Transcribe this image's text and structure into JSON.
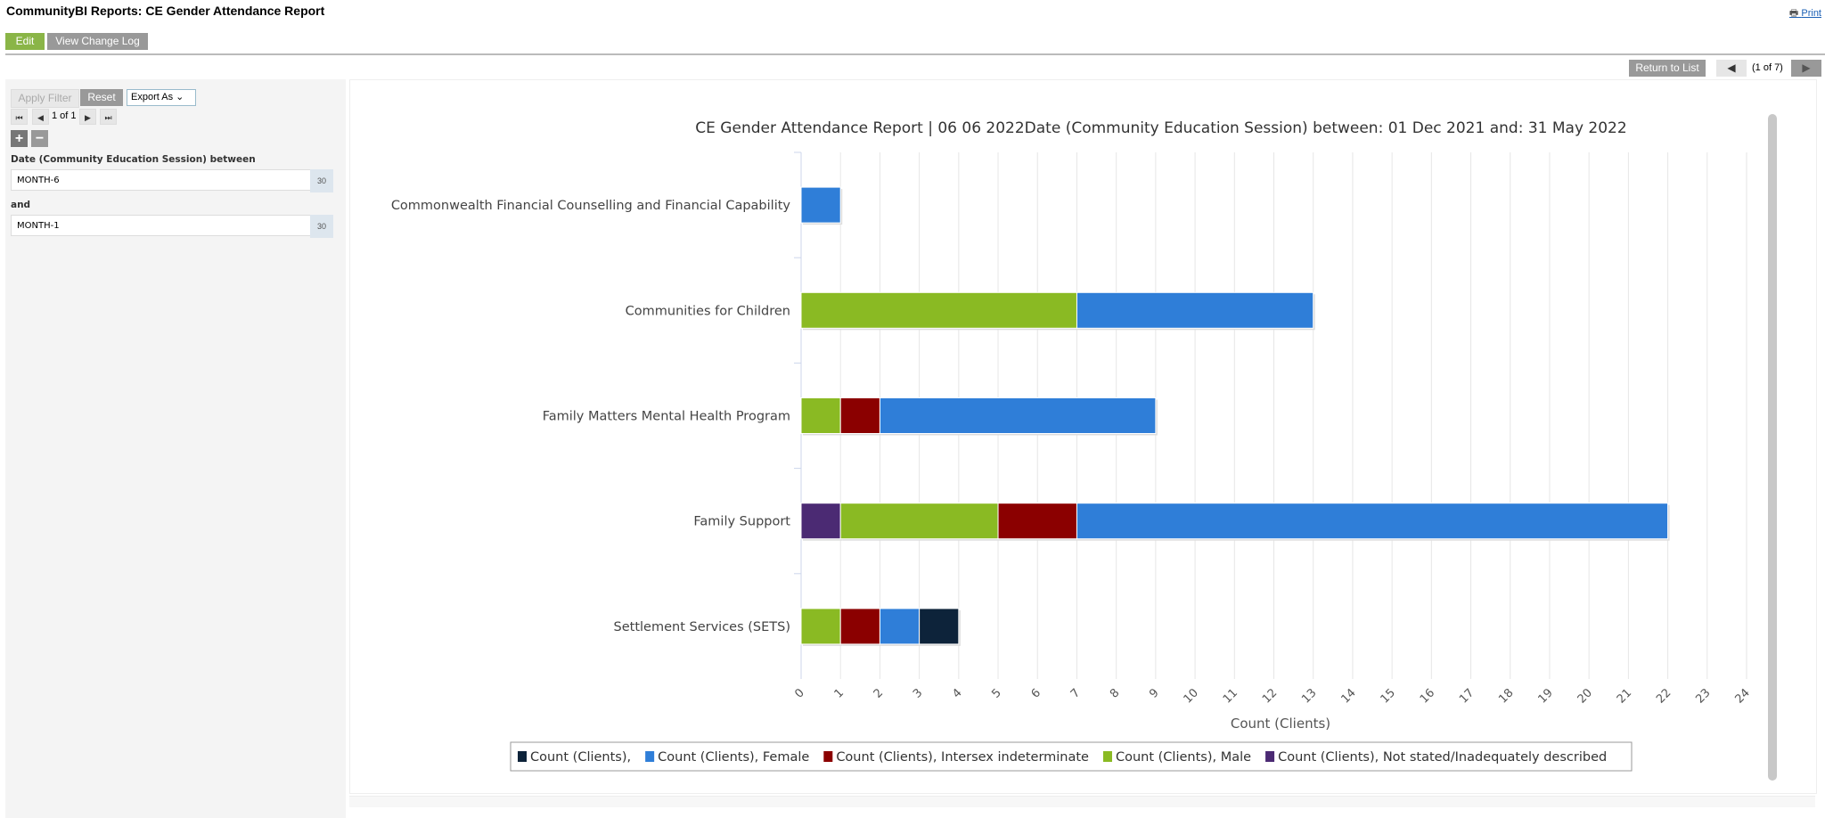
{
  "header": {
    "title": "CommunityBI Reports: CE Gender Attendance Report",
    "print_label": "Print",
    "edit_label": "Edit",
    "change_log_label": "View Change Log"
  },
  "nav": {
    "return_label": "Return to List",
    "position": "(1 of 7)"
  },
  "filter": {
    "apply_label": "Apply Filter",
    "reset_label": "Reset",
    "export_label": "Export As",
    "page": "1 of 1",
    "date_label": "Date (Community Education Session) between",
    "from_value": "MONTH-6",
    "and_label": "and",
    "to_value": "MONTH-1",
    "calendar_text": "30"
  },
  "chart_data": {
    "type": "bar",
    "orientation": "horizontal",
    "stacked": true,
    "title": "CE Gender Attendance Report | 06 06 2022Date (Community Education Session) between: 01 Dec 2021 and: 31 May 2022",
    "xlabel": "Count (Clients)",
    "ylabel": "",
    "xlim": [
      0,
      24
    ],
    "x_ticks": [
      "0",
      "1",
      "2",
      "3",
      "4",
      "5",
      "6",
      "7",
      "8",
      "9",
      "10",
      "11",
      "12",
      "13",
      "14",
      "15",
      "16",
      "17",
      "18",
      "19",
      "20",
      "21",
      "22",
      "23",
      "24"
    ],
    "categories": [
      "Commonwealth Financial Counselling and Financial Capability",
      "Communities for Children",
      "Family Matters Mental Health Program",
      "Family Support",
      "Settlement Services (SETS)"
    ],
    "series": [
      {
        "name": "Count (Clients), Not stated/Inadequately described",
        "color": "#4b2a73",
        "values": [
          0,
          0,
          0,
          1,
          0
        ]
      },
      {
        "name": "Count (Clients), Male",
        "color": "#8aba23",
        "values": [
          0,
          7,
          1,
          4,
          1
        ]
      },
      {
        "name": "Count (Clients), Intersex indeterminate",
        "color": "#8b0000",
        "values": [
          0,
          0,
          1,
          2,
          1
        ]
      },
      {
        "name": "Count (Clients), Female",
        "color": "#2f7ed8",
        "values": [
          1,
          6,
          7,
          15,
          1
        ]
      },
      {
        "name": "Count (Clients),",
        "color": "#0d233a",
        "values": [
          0,
          0,
          0,
          0,
          1
        ]
      }
    ],
    "legend_order": [
      4,
      3,
      2,
      1,
      0
    ],
    "legend": "bottom",
    "grid": true
  }
}
